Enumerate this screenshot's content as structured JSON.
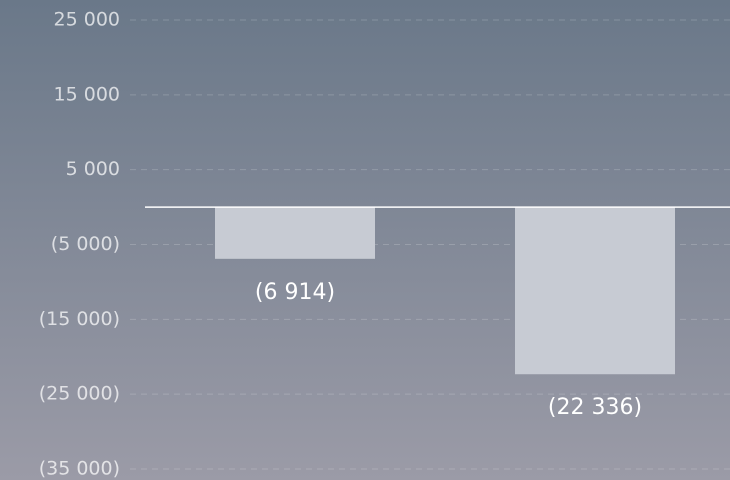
{
  "chart_data": {
    "type": "bar",
    "categories": [
      null,
      null
    ],
    "values": [
      -6914,
      -22336
    ],
    "value_labels": [
      "(6 914)",
      "(22 336)"
    ],
    "color": "#c7cbd3",
    "ylim": [
      -35000,
      25000
    ],
    "yticks": [
      {
        "value": 25000,
        "label": "25 000"
      },
      {
        "value": 15000,
        "label": "15 000"
      },
      {
        "value": 5000,
        "label": "5 000"
      },
      {
        "value": -5000,
        "label": "(5 000)"
      },
      {
        "value": -15000,
        "label": "(15 000)"
      },
      {
        "value": -25000,
        "label": "(25 000)"
      },
      {
        "value": -35000,
        "label": "(35 000)"
      }
    ],
    "grid": true
  }
}
